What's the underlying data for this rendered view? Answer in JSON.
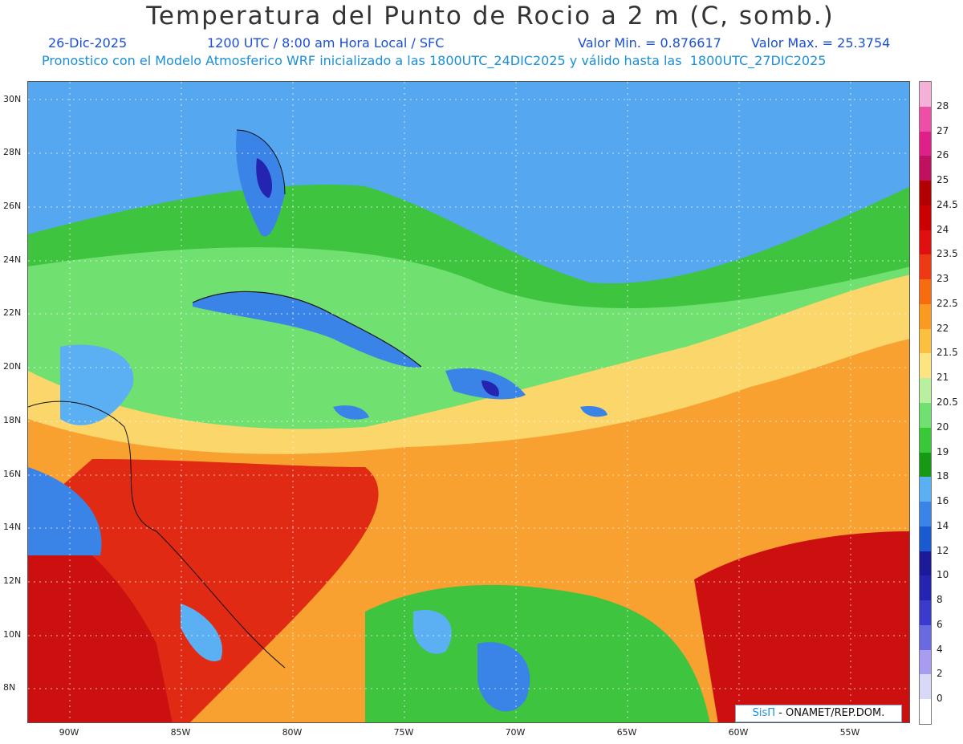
{
  "header": {
    "title": "Temperatura del Punto de Rocio a 2 m (C, somb.)",
    "date": "26-Dic-2025",
    "time": "1200 UTC / 8:00 am Hora Local / SFC",
    "min_value": "Valor Min. = 0.876617",
    "max_value": "Valor Max. = 25.3754",
    "forecast_info": "Pronostico con el Modelo Atmosferico WRF inicializado a las 1800UTC_24DIC2025 y válido hasta las  1800UTC_27DIC2025"
  },
  "axes": {
    "lat_labels": [
      "30N",
      "28N",
      "26N",
      "24N",
      "22N",
      "20N",
      "18N",
      "16N",
      "14N",
      "12N",
      "10N",
      "8N"
    ],
    "lon_labels": [
      "90W",
      "85W",
      "80W",
      "75W",
      "70W",
      "65W",
      "60W",
      "55W"
    ]
  },
  "colorbar": {
    "labels": [
      "28",
      "27",
      "26",
      "25",
      "24.5",
      "24",
      "23.5",
      "23",
      "22.5",
      "22",
      "21.5",
      "21",
      "20.5",
      "20",
      "19",
      "18",
      "16",
      "14",
      "12",
      "10",
      "8",
      "6",
      "4",
      "2",
      "0"
    ],
    "colors": [
      "#f4b0d6",
      "#ee4fa6",
      "#e0208a",
      "#c01060",
      "#b20000",
      "#cc0000",
      "#e01010",
      "#ee3a14",
      "#f86c10",
      "#fa9a20",
      "#fbc040",
      "#fde480",
      "#b8f0a0",
      "#70e070",
      "#38c838",
      "#169a16",
      "#5ab0f2",
      "#3a84e8",
      "#1a5ad0",
      "#1c1a98",
      "#2424b0",
      "#3a3acc",
      "#6a6ae0",
      "#a89cf0",
      "#d8d8f8",
      "#ffffff"
    ]
  },
  "credit": {
    "brand": "SisΠ",
    "org": " - ONAMET/REP.DOM."
  },
  "palette": {
    "ocean_atlantic": "#55a8f0",
    "green": "#3ec43e",
    "dark_green": "#169a16",
    "light_green": "#90e890",
    "yellow": "#fbd66a",
    "orange": "#f8a030",
    "red": "#e02a14",
    "dark_red": "#cc1010",
    "blue": "#3a84e8",
    "navy": "#2424b0"
  }
}
